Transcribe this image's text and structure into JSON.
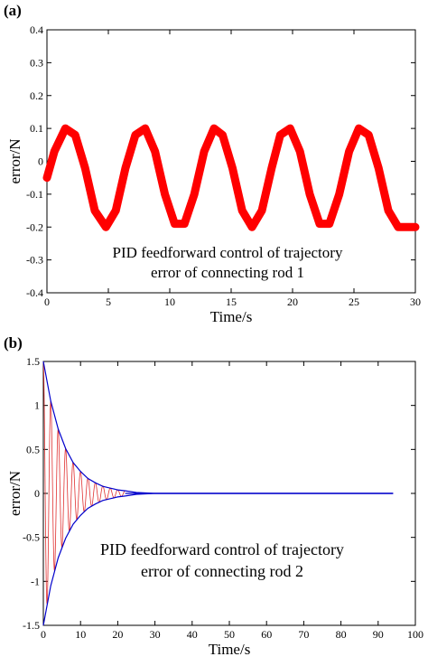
{
  "chart_data": [
    {
      "type": "line",
      "panel_label": "(a)",
      "xlabel": "Time/s",
      "ylabel": "error/N",
      "xlim": [
        0,
        30
      ],
      "ylim": [
        -0.4,
        0.4
      ],
      "xticks": [
        0,
        5,
        10,
        15,
        20,
        25,
        30
      ],
      "yticks": [
        0.4,
        0.3,
        0.2,
        0.1,
        0,
        -0.1,
        -0.2,
        -0.3,
        -0.4
      ],
      "xtick_labels": [
        "0",
        "5",
        "10",
        "15",
        "20",
        "25",
        "30"
      ],
      "ytick_labels": [
        "0.4",
        "0.3",
        "0.2",
        "0.1",
        "0",
        "-0.1",
        "-0.2",
        "-0.3",
        "-0.4"
      ],
      "annotation": [
        "PID feedforward control of trajectory",
        "error of connecting rod 1"
      ],
      "grid": false,
      "series": [
        {
          "color": "#ff0000",
          "x": [
            0,
            0.6,
            1.5,
            2.3,
            3.1,
            3.9,
            4.8,
            5.6,
            6.4,
            7.2,
            8.0,
            8.8,
            9.6,
            10.4,
            11.2,
            12.0,
            12.8,
            13.6,
            14.3,
            15.1,
            15.9,
            16.7,
            17.5,
            18.3,
            19.0,
            19.8,
            20.6,
            21.4,
            22.2,
            23.0,
            23.8,
            24.6,
            25.4,
            26.2,
            27.0,
            27.8,
            28.6,
            29.4,
            30.0
          ],
          "y": [
            -0.05,
            0.03,
            0.1,
            0.08,
            -0.02,
            -0.15,
            -0.2,
            -0.15,
            -0.02,
            0.08,
            0.1,
            0.03,
            -0.1,
            -0.19,
            -0.19,
            -0.1,
            0.03,
            0.1,
            0.08,
            -0.02,
            -0.15,
            -0.2,
            -0.15,
            -0.02,
            0.08,
            0.1,
            0.03,
            -0.1,
            -0.19,
            -0.19,
            -0.1,
            0.03,
            0.1,
            0.08,
            -0.02,
            -0.15,
            -0.2,
            -0.2,
            -0.2
          ]
        }
      ]
    },
    {
      "type": "line",
      "panel_label": "(b)",
      "xlabel": "Time/s",
      "ylabel": "error/N",
      "xlim": [
        0,
        100
      ],
      "ylim": [
        -1.5,
        1.5
      ],
      "xticks": [
        0,
        10,
        20,
        30,
        40,
        50,
        60,
        70,
        80,
        90,
        100
      ],
      "yticks": [
        1.5,
        1,
        0.5,
        0,
        -0.5,
        -1,
        -1.5
      ],
      "xtick_labels": [
        "0",
        "10",
        "20",
        "30",
        "40",
        "50",
        "60",
        "70",
        "80",
        "90",
        "100"
      ],
      "ytick_labels": [
        "1.5",
        "1",
        "0.5",
        "0",
        "-0.5",
        "-1",
        "-1.5"
      ],
      "annotation": [
        "PID feedforward control of trajectory",
        "error of connecting rod 2"
      ],
      "grid": false,
      "series": [
        {
          "role": "oscillation",
          "color": "#e03030",
          "amplitude": 1.5,
          "decay_rate": 0.18,
          "period": 2.0,
          "x_end": 22
        },
        {
          "role": "upper-envelope",
          "color": "#0000cc",
          "x": [
            0,
            2,
            4,
            6,
            8,
            10,
            12,
            14,
            16,
            18,
            20,
            22,
            25,
            30,
            40,
            50,
            60,
            70,
            80,
            94
          ],
          "y": [
            1.5,
            1.05,
            0.73,
            0.51,
            0.35,
            0.25,
            0.17,
            0.12,
            0.08,
            0.06,
            0.04,
            0.03,
            0.01,
            0,
            0,
            0,
            0,
            0,
            0,
            0
          ]
        },
        {
          "role": "lower-envelope",
          "color": "#0000cc",
          "x": [
            0,
            2,
            4,
            6,
            8,
            10,
            12,
            14,
            16,
            18,
            20,
            22,
            25,
            30,
            40,
            50,
            60,
            70,
            80,
            94
          ],
          "y": [
            -1.5,
            -1.05,
            -0.73,
            -0.51,
            -0.35,
            -0.25,
            -0.17,
            -0.12,
            -0.08,
            -0.06,
            -0.04,
            -0.03,
            -0.01,
            0,
            0,
            0,
            0,
            0,
            0,
            0
          ]
        },
        {
          "role": "steady-state",
          "color": "#0000cc",
          "x": [
            22,
            94
          ],
          "y": [
            0,
            0
          ]
        }
      ]
    }
  ]
}
